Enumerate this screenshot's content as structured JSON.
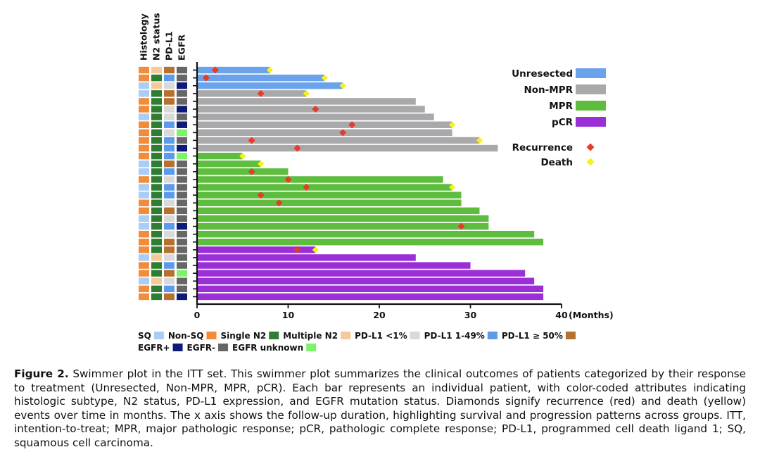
{
  "chart_data": {
    "type": "swimmer",
    "title": "",
    "xlabel": "(Months)",
    "xlim": [
      0,
      40
    ],
    "xticks": [
      0,
      10,
      20,
      30,
      40
    ],
    "track_labels": [
      "Histology",
      "N2 status",
      "PD-L1",
      "EGFR"
    ],
    "response_groups": [
      {
        "name": "Unresected",
        "color": "#6aa3ec"
      },
      {
        "name": "Non-MPR",
        "color": "#a9a9ab"
      },
      {
        "name": "MPR",
        "color": "#5ebd3e"
      },
      {
        "name": "pCR",
        "color": "#9a2fd6"
      }
    ],
    "event_legend": [
      {
        "name": "Recurrence",
        "color": "#e63a2a"
      },
      {
        "name": "Death",
        "color": "#f7f21a"
      }
    ],
    "attributes": {
      "histology": {
        "SQ": "#a9cdf5",
        "Non-SQ": "#f08c3a"
      },
      "n2": {
        "Single N2": "#2e7d32",
        "Multiple N2": "#f7c99a"
      },
      "pdl1": {
        "PD-L1 <1%": "#d9d9d9",
        "PD-L1 1-49%": "#5b9bea",
        "PD-L1 ≥ 50%": "#b5712f"
      },
      "egfr": {
        "EGFR+": "#0d1a78",
        "EGFR-": "#666666",
        "EGFR unknown": "#7df26a"
      }
    },
    "patients": [
      {
        "group": "Unresected",
        "duration": 8,
        "recurrence": 2,
        "death": 8,
        "histology": "Non-SQ",
        "n2": "Multiple N2",
        "pdl1": "PD-L1 ≥ 50%",
        "egfr": "EGFR-"
      },
      {
        "group": "Unresected",
        "duration": 14,
        "recurrence": 1,
        "death": 14,
        "histology": "Non-SQ",
        "n2": "Single N2",
        "pdl1": "PD-L1 1-49%",
        "egfr": "EGFR-"
      },
      {
        "group": "Unresected",
        "duration": 16,
        "recurrence": null,
        "death": 16,
        "histology": "SQ",
        "n2": "Multiple N2",
        "pdl1": "PD-L1 <1%",
        "egfr": "EGFR+"
      },
      {
        "group": "Non-MPR",
        "duration": 12,
        "recurrence": 7,
        "death": 12,
        "histology": "SQ",
        "n2": "Single N2",
        "pdl1": "PD-L1 ≥ 50%",
        "egfr": "EGFR-"
      },
      {
        "group": "Non-MPR",
        "duration": 24,
        "recurrence": null,
        "death": null,
        "histology": "Non-SQ",
        "n2": "Single N2",
        "pdl1": "PD-L1 ≥ 50%",
        "egfr": "EGFR-"
      },
      {
        "group": "Non-MPR",
        "duration": 25,
        "recurrence": 13,
        "death": null,
        "histology": "Non-SQ",
        "n2": "Single N2",
        "pdl1": "PD-L1 <1%",
        "egfr": "EGFR+"
      },
      {
        "group": "Non-MPR",
        "duration": 26,
        "recurrence": null,
        "death": null,
        "histology": "SQ",
        "n2": "Single N2",
        "pdl1": "PD-L1 <1%",
        "egfr": "EGFR-"
      },
      {
        "group": "Non-MPR",
        "duration": 28,
        "recurrence": 17,
        "death": 28,
        "histology": "Non-SQ",
        "n2": "Single N2",
        "pdl1": "PD-L1 1-49%",
        "egfr": "EGFR+"
      },
      {
        "group": "Non-MPR",
        "duration": 28,
        "recurrence": 16,
        "death": null,
        "histology": "Non-SQ",
        "n2": "Single N2",
        "pdl1": "PD-L1 <1%",
        "egfr": "EGFR unknown"
      },
      {
        "group": "Non-MPR",
        "duration": 31,
        "recurrence": 6,
        "death": 31,
        "histology": "Non-SQ",
        "n2": "Single N2",
        "pdl1": "PD-L1 1-49%",
        "egfr": "EGFR-"
      },
      {
        "group": "Non-MPR",
        "duration": 33,
        "recurrence": 11,
        "death": null,
        "histology": "Non-SQ",
        "n2": "Single N2",
        "pdl1": "PD-L1 1-49%",
        "egfr": "EGFR+"
      },
      {
        "group": "MPR",
        "duration": 5,
        "recurrence": null,
        "death": 5,
        "histology": "Non-SQ",
        "n2": "Single N2",
        "pdl1": "PD-L1 1-49%",
        "egfr": "EGFR unknown"
      },
      {
        "group": "MPR",
        "duration": 7,
        "recurrence": null,
        "death": 7,
        "histology": "SQ",
        "n2": "Single N2",
        "pdl1": "PD-L1 ≥ 50%",
        "egfr": "EGFR-"
      },
      {
        "group": "MPR",
        "duration": 10,
        "recurrence": 6,
        "death": null,
        "histology": "SQ",
        "n2": "Single N2",
        "pdl1": "PD-L1 1-49%",
        "egfr": "EGFR-"
      },
      {
        "group": "MPR",
        "duration": 27,
        "recurrence": 10,
        "death": null,
        "histology": "Non-SQ",
        "n2": "Single N2",
        "pdl1": "PD-L1 <1%",
        "egfr": "EGFR-"
      },
      {
        "group": "MPR",
        "duration": 28,
        "recurrence": 12,
        "death": 28,
        "histology": "SQ",
        "n2": "Single N2",
        "pdl1": "PD-L1 1-49%",
        "egfr": "EGFR-"
      },
      {
        "group": "MPR",
        "duration": 29,
        "recurrence": 7,
        "death": null,
        "histology": "SQ",
        "n2": "Single N2",
        "pdl1": "PD-L1 1-49%",
        "egfr": "EGFR-"
      },
      {
        "group": "MPR",
        "duration": 29,
        "recurrence": 9,
        "death": null,
        "histology": "Non-SQ",
        "n2": "Single N2",
        "pdl1": "PD-L1 <1%",
        "egfr": "EGFR-"
      },
      {
        "group": "MPR",
        "duration": 31,
        "recurrence": null,
        "death": null,
        "histology": "Non-SQ",
        "n2": "Single N2",
        "pdl1": "PD-L1 ≥ 50%",
        "egfr": "EGFR-"
      },
      {
        "group": "MPR",
        "duration": 32,
        "recurrence": null,
        "death": null,
        "histology": "SQ",
        "n2": "Single N2",
        "pdl1": "PD-L1 <1%",
        "egfr": "EGFR-"
      },
      {
        "group": "MPR",
        "duration": 32,
        "recurrence": 29,
        "death": null,
        "histology": "SQ",
        "n2": "Single N2",
        "pdl1": "PD-L1 1-49%",
        "egfr": "EGFR+"
      },
      {
        "group": "MPR",
        "duration": 37,
        "recurrence": null,
        "death": null,
        "histology": "Non-SQ",
        "n2": "Single N2",
        "pdl1": "PD-L1 <1%",
        "egfr": "EGFR-"
      },
      {
        "group": "MPR",
        "duration": 38,
        "recurrence": null,
        "death": null,
        "histology": "Non-SQ",
        "n2": "Single N2",
        "pdl1": "PD-L1 ≥ 50%",
        "egfr": "EGFR-"
      },
      {
        "group": "pCR",
        "duration": 13,
        "recurrence": 11,
        "death": 13,
        "histology": "Non-SQ",
        "n2": "Single N2",
        "pdl1": "PD-L1 ≥ 50%",
        "egfr": "EGFR-"
      },
      {
        "group": "pCR",
        "duration": 24,
        "recurrence": null,
        "death": null,
        "histology": "SQ",
        "n2": "Multiple N2",
        "pdl1": "PD-L1 <1%",
        "egfr": "EGFR-"
      },
      {
        "group": "pCR",
        "duration": 30,
        "recurrence": null,
        "death": null,
        "histology": "Non-SQ",
        "n2": "Single N2",
        "pdl1": "PD-L1 1-49%",
        "egfr": "EGFR-"
      },
      {
        "group": "pCR",
        "duration": 36,
        "recurrence": null,
        "death": null,
        "histology": "Non-SQ",
        "n2": "Single N2",
        "pdl1": "PD-L1 ≥ 50%",
        "egfr": "EGFR unknown"
      },
      {
        "group": "pCR",
        "duration": 37,
        "recurrence": null,
        "death": null,
        "histology": "SQ",
        "n2": "Multiple N2",
        "pdl1": "PD-L1 <1%",
        "egfr": "EGFR-"
      },
      {
        "group": "pCR",
        "duration": 38,
        "recurrence": null,
        "death": null,
        "histology": "Non-SQ",
        "n2": "Single N2",
        "pdl1": "PD-L1 1-49%",
        "egfr": "EGFR-"
      },
      {
        "group": "pCR",
        "duration": 38,
        "recurrence": null,
        "death": null,
        "histology": "Non-SQ",
        "n2": "Single N2",
        "pdl1": "PD-L1 ≥ 50%",
        "egfr": "EGFR+"
      }
    ],
    "bottom_legend": [
      [
        {
          "label": "SQ",
          "color": "#a9cdf5"
        },
        {
          "label": "Non-SQ",
          "color": "#f08c3a"
        },
        {
          "label": "Single N2",
          "color": "#2e7d32"
        },
        {
          "label": "Multiple N2",
          "color": "#f7c99a"
        },
        {
          "label": "PD-L1 <1%",
          "color": "#d9d9d9"
        },
        {
          "label": "PD-L1 1-49%",
          "color": "#5b9bea"
        },
        {
          "label": "PD-L1 ≥ 50%",
          "color": "#b5712f"
        }
      ],
      [
        {
          "label": "EGFR+",
          "color": "#0d1a78"
        },
        {
          "label": "EGFR-",
          "color": "#666666"
        },
        {
          "label": "EGFR unknown",
          "color": "#7df26a"
        }
      ]
    ]
  },
  "caption": {
    "label": "Figure 2.",
    "text": " Swimmer plot in the ITT set. This swimmer plot summarizes the clinical outcomes of patients categorized by their response to treatment (Unresected, Non-MPR, MPR, pCR). Each bar represents an individual patient, with color-coded attributes indicating histologic subtype, N2 status, PD-L1 expression, and EGFR mutation status. Diamonds signify recurrence (red) and death (yellow) events over time in months. The x axis shows the follow-up duration, highlighting survival and progression patterns across groups. ITT, intention-to-treat; MPR, major pathologic response; pCR, pathologic complete response; PD-L1, programmed cell death ligand 1; SQ, squamous cell carcinoma."
  }
}
